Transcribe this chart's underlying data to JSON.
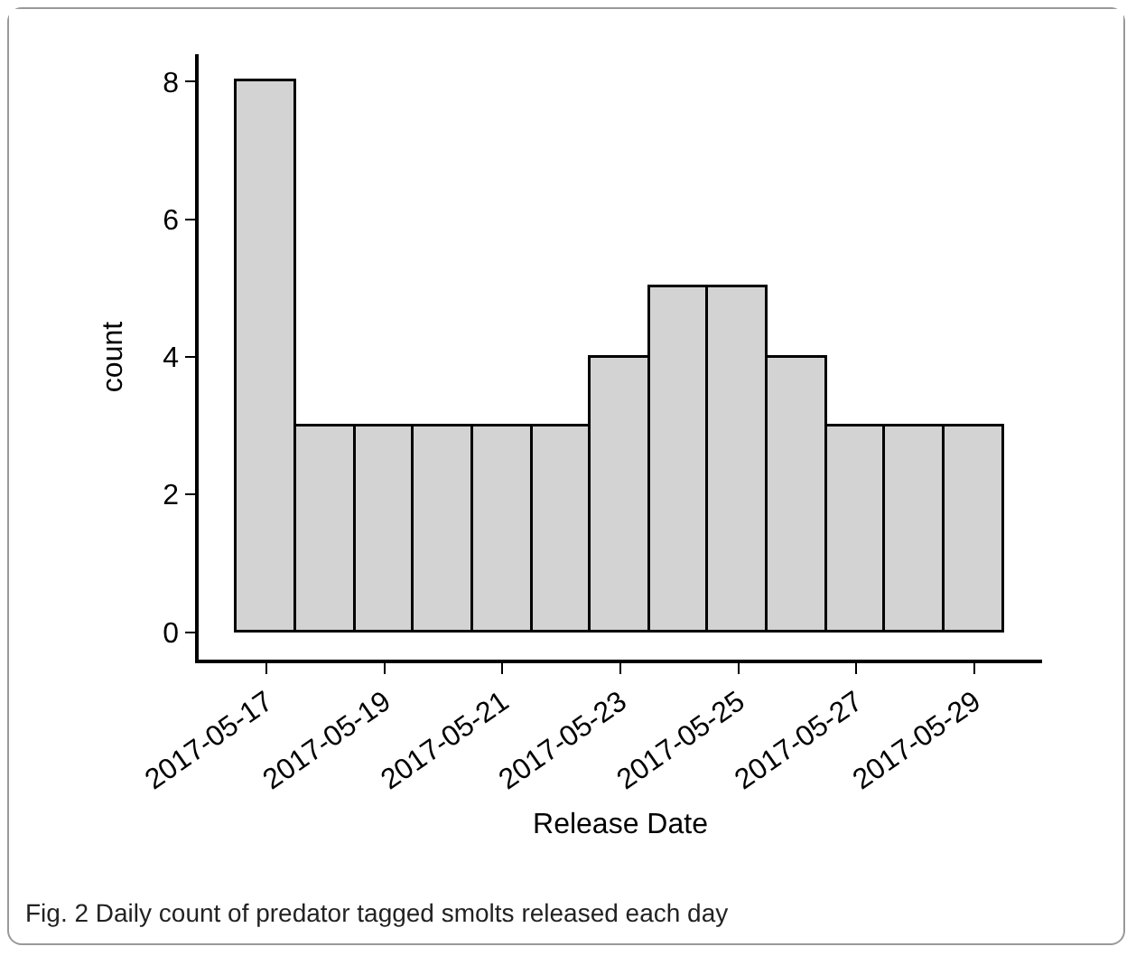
{
  "chart_data": {
    "type": "histogram",
    "xlabel": "Release Date",
    "ylabel": "count",
    "bins": [
      "2017-05-16T12:00",
      "2017-05-17T12:00",
      "2017-05-18T12:00",
      "2017-05-19T12:00",
      "2017-05-20T12:00",
      "2017-05-21T12:00",
      "2017-05-22T12:00",
      "2017-05-23T12:00",
      "2017-05-24T12:00",
      "2017-05-25T12:00",
      "2017-05-26T12:00",
      "2017-05-27T12:00",
      "2017-05-28T12:00",
      "2017-05-29T12:00"
    ],
    "values": [
      8,
      3,
      3,
      3,
      3,
      3,
      4,
      5,
      5,
      4,
      3,
      3,
      3
    ],
    "color": "#d3d3d3",
    "xlim": [
      "2017-05-15T20:24",
      "2017-05-30T03:36"
    ],
    "xticks": [
      "2017-05-17",
      "2017-05-19",
      "2017-05-21",
      "2017-05-23",
      "2017-05-25",
      "2017-05-27",
      "2017-05-29"
    ],
    "ylim": [
      -0.4,
      8.4
    ],
    "yticks": [
      0,
      2,
      4,
      6,
      8
    ],
    "grid": false,
    "legend": false,
    "annotations": [
      "Fig. 2  Daily count of predator tagged smolts released each day"
    ]
  }
}
